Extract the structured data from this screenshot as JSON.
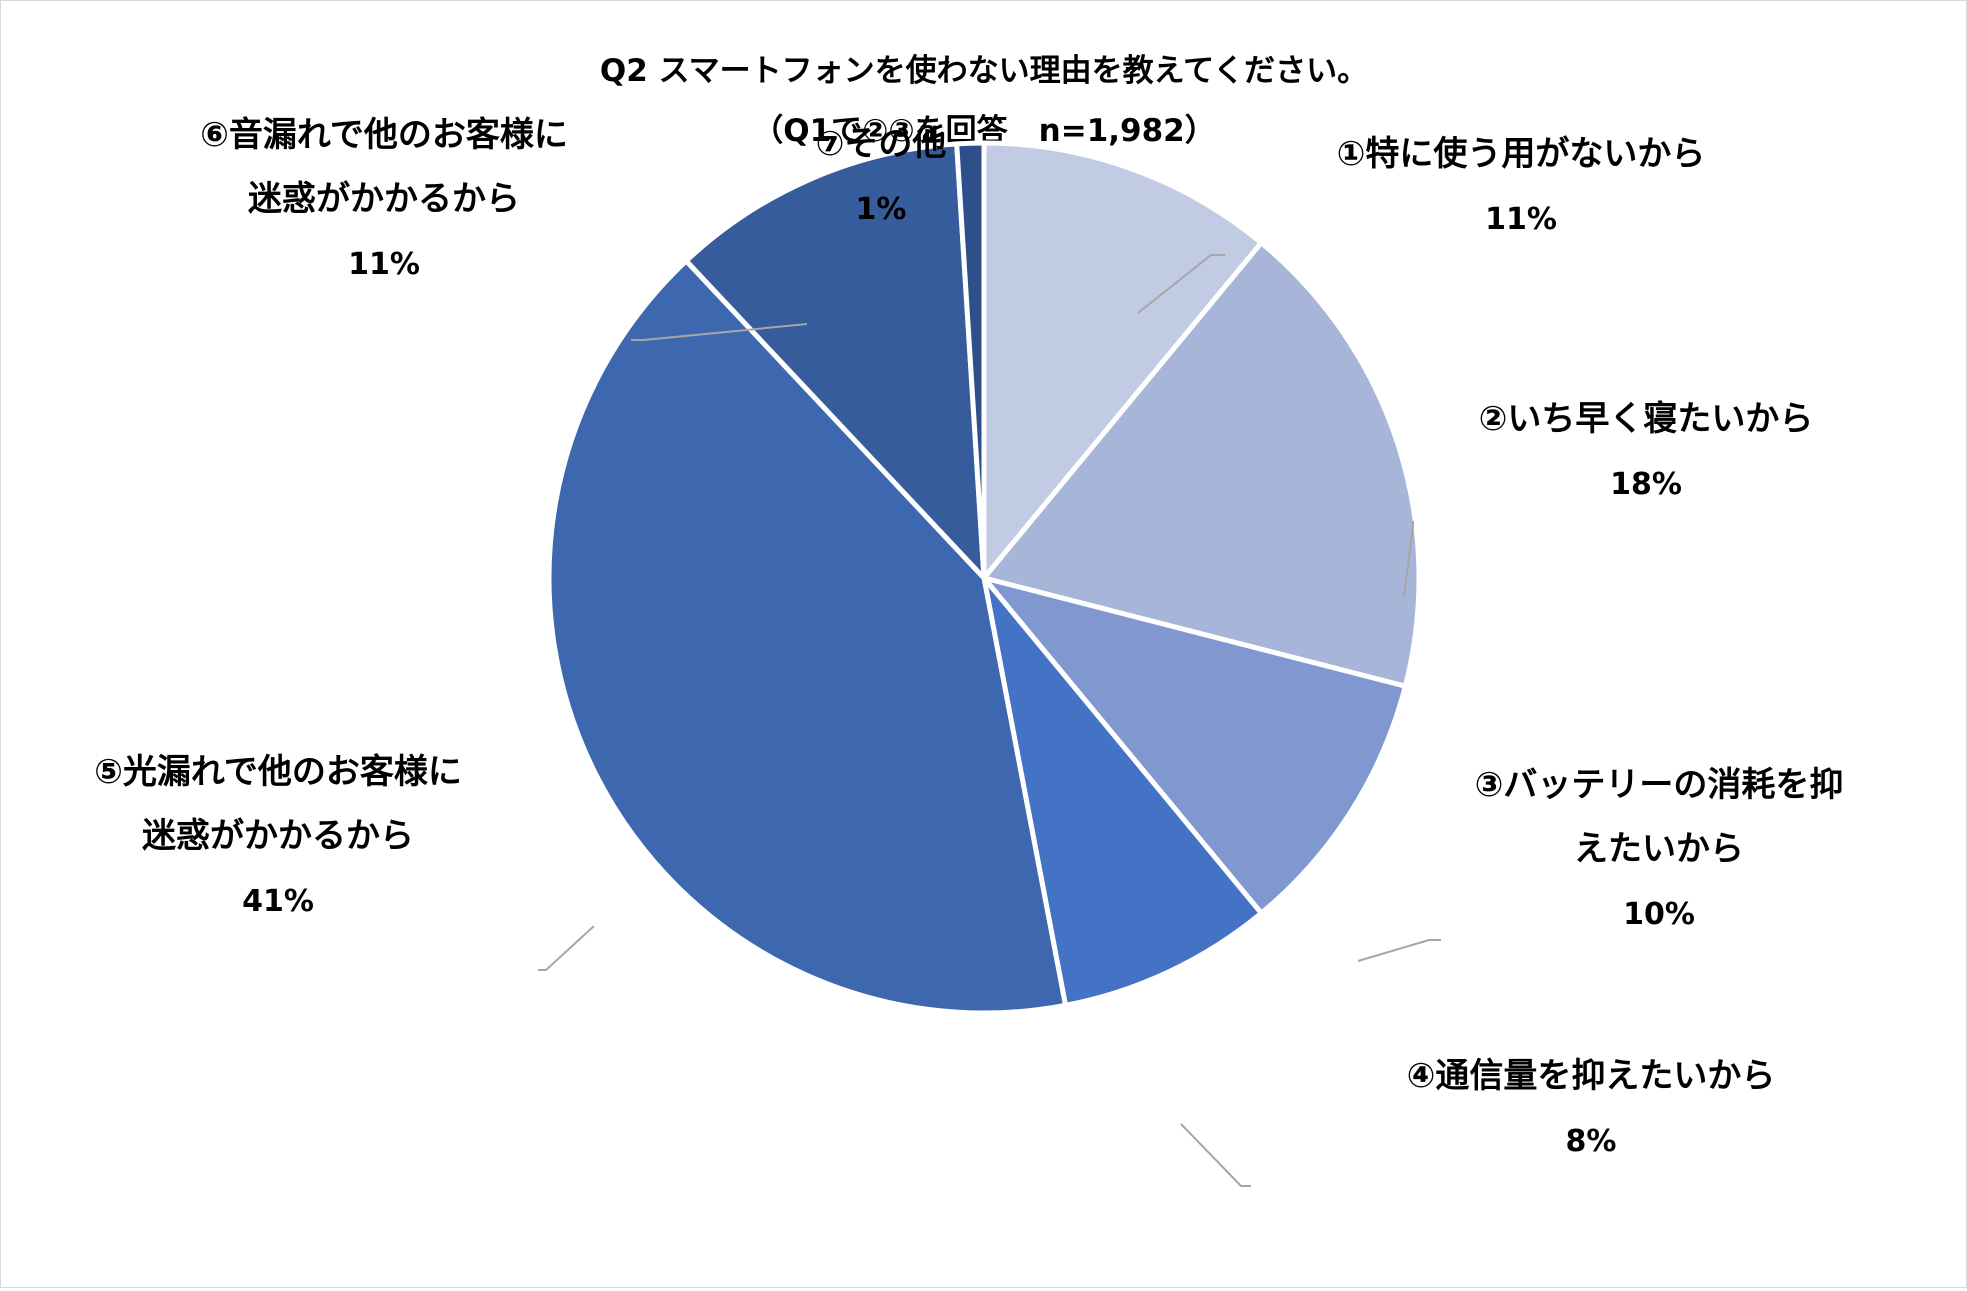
{
  "chart_data": {
    "type": "pie",
    "title": "Q2 スマートフォンを使わない理由を教えてください。",
    "subtitle": "（Q1で②③を回答　n=1,982）",
    "categories": [
      "①特に使う用がないから",
      "②いち早く寝たいから",
      "③バッテリーの消耗を抑えたいから",
      "④通信量を抑えたいから",
      "⑤光漏れで他のお客様に迷惑がかかるから",
      "⑥音漏れで他のお客様に迷惑がかかるから",
      "⑦その他"
    ],
    "label_lines": [
      [
        "①特に使う用がないから"
      ],
      [
        "②いち早く寝たいから"
      ],
      [
        "③バッテリーの消耗を抑",
        "えたいから"
      ],
      [
        "④通信量を抑えたいから"
      ],
      [
        "⑤光漏れで他のお客様に",
        "迷惑がかかるから"
      ],
      [
        "⑥音漏れで他のお客様に",
        "迷惑がかかるから"
      ],
      [
        "⑦その他"
      ]
    ],
    "values": [
      11,
      18,
      10,
      8,
      41,
      11,
      1
    ],
    "value_labels": [
      "11%",
      "18%",
      "10%",
      "8%",
      "41%",
      "11%",
      "1%"
    ],
    "unit": "%",
    "colors": [
      "#c1cbe3",
      "#a7b5d9",
      "#8097cf",
      "#4472c4",
      "#3d68b0",
      "#365c9c",
      "#2d4f8a"
    ],
    "start_angle": "12 o'clock",
    "direction": "clockwise",
    "legend": "none",
    "data_labels": "outside with leader lines"
  }
}
